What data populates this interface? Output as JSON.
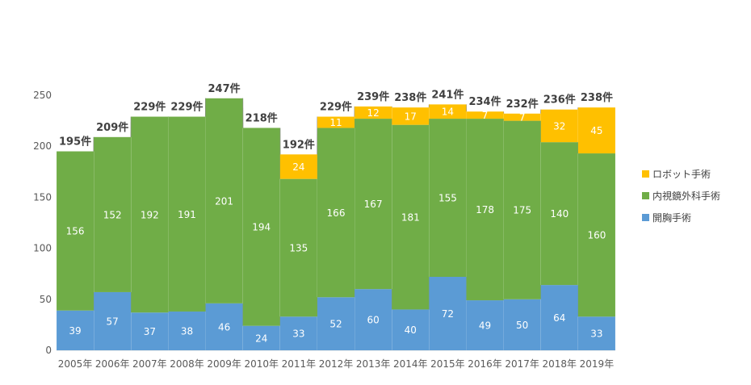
{
  "chart_data": {
    "type": "bar",
    "stacked": true,
    "categories": [
      "2005年",
      "2006年",
      "2007年",
      "2008年",
      "2009年",
      "2010年",
      "2011年",
      "2012年",
      "2013年",
      "2014年",
      "2015年",
      "2016年",
      "2017年",
      "2018年",
      "2019年"
    ],
    "series": [
      {
        "name": "開胸手術",
        "color": "#5b9bd5",
        "values": [
          39,
          57,
          37,
          38,
          46,
          24,
          33,
          52,
          60,
          40,
          72,
          49,
          50,
          64,
          33
        ]
      },
      {
        "name": "内視鏡外科手術",
        "color": "#70ad47",
        "values": [
          156,
          152,
          192,
          191,
          201,
          194,
          135,
          166,
          167,
          181,
          155,
          178,
          175,
          140,
          160
        ]
      },
      {
        "name": "ロボット手術",
        "color": "#ffc000",
        "values": [
          null,
          null,
          null,
          null,
          null,
          null,
          24,
          11,
          12,
          17,
          14,
          7,
          7,
          32,
          45
        ]
      }
    ],
    "totals": [
      "195件",
      "209件",
      "229件",
      "229件",
      "247件",
      "218件",
      "192件",
      "229件",
      "239件",
      "238件",
      "241件",
      "234件",
      "232件",
      "236件",
      "238件"
    ],
    "yticks": [
      "0",
      "50",
      "100",
      "150",
      "200",
      "250"
    ],
    "ylim": [
      0,
      250
    ],
    "grid": false,
    "series_lines": true,
    "legend_position": "right",
    "legend": [
      "ロボット手術",
      "内視鏡外科手術",
      "開胸手術"
    ],
    "title": "",
    "xlabel": "",
    "ylabel": ""
  }
}
